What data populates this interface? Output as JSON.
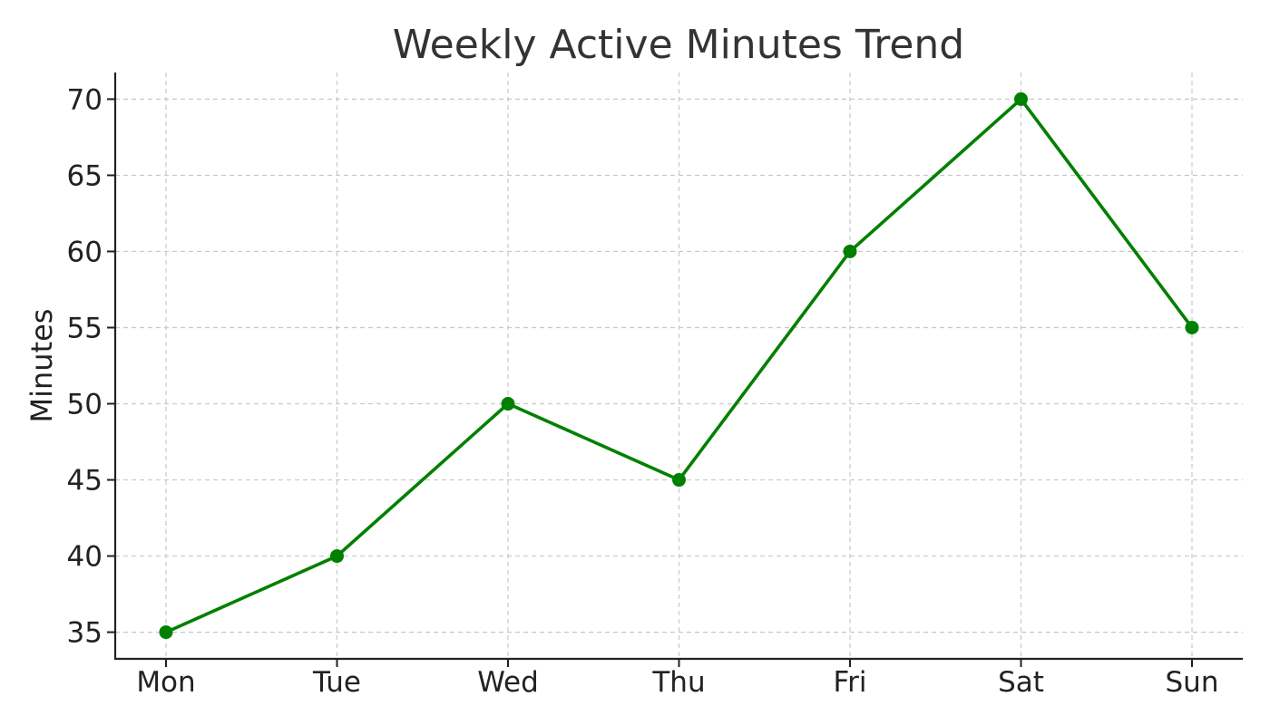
{
  "chart_data": {
    "type": "line",
    "title": "Weekly Active Minutes Trend",
    "xlabel": "",
    "ylabel": "Minutes",
    "categories": [
      "Mon",
      "Tue",
      "Wed",
      "Thu",
      "Fri",
      "Sat",
      "Sun"
    ],
    "series": [
      {
        "values": [
          35,
          40,
          50,
          45,
          60,
          70,
          55
        ],
        "color": "#008000",
        "marker": "circle"
      }
    ],
    "yticks": [
      35,
      40,
      45,
      50,
      55,
      60,
      65,
      70
    ],
    "ylim": [
      33.25,
      71.75
    ],
    "grid": true,
    "legend": "none"
  }
}
